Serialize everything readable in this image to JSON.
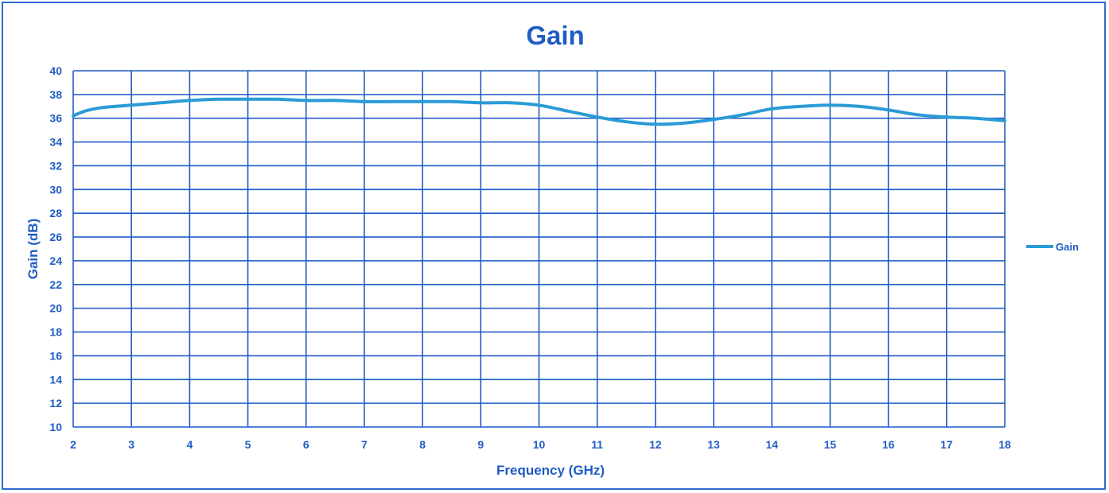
{
  "chart_data": {
    "type": "line",
    "title": "Gain",
    "xlabel": "Frequency (GHz)",
    "ylabel": "Gain (dB)",
    "xlim": [
      2,
      18
    ],
    "ylim": [
      10,
      40
    ],
    "xticks": [
      2,
      3,
      4,
      5,
      6,
      7,
      8,
      9,
      10,
      11,
      12,
      13,
      14,
      15,
      16,
      17,
      18
    ],
    "yticks": [
      10,
      12,
      14,
      16,
      18,
      20,
      22,
      24,
      26,
      28,
      30,
      32,
      34,
      36,
      38,
      40
    ],
    "grid": true,
    "legend_position": "right",
    "colors": {
      "axis": "#1f5cc4",
      "text": "#1f5cc4",
      "line": "#2a9bd6",
      "frame": "#2f6bd1"
    },
    "series": [
      {
        "name": "Gain",
        "x": [
          2.0,
          2.2,
          2.5,
          3.0,
          3.5,
          4.0,
          4.5,
          5.0,
          5.5,
          6.0,
          6.5,
          7.0,
          7.5,
          8.0,
          8.5,
          9.0,
          9.5,
          10.0,
          10.5,
          11.0,
          11.5,
          12.0,
          12.5,
          13.0,
          13.5,
          14.0,
          14.5,
          15.0,
          15.5,
          16.0,
          16.5,
          17.0,
          17.5,
          18.0
        ],
        "values": [
          36.2,
          36.6,
          36.9,
          37.1,
          37.3,
          37.5,
          37.6,
          37.6,
          37.6,
          37.5,
          37.5,
          37.4,
          37.4,
          37.4,
          37.4,
          37.3,
          37.3,
          37.1,
          36.6,
          36.1,
          35.7,
          35.5,
          35.6,
          35.9,
          36.3,
          36.8,
          37.0,
          37.1,
          37.0,
          36.7,
          36.3,
          36.1,
          36.0,
          35.8
        ]
      }
    ]
  }
}
